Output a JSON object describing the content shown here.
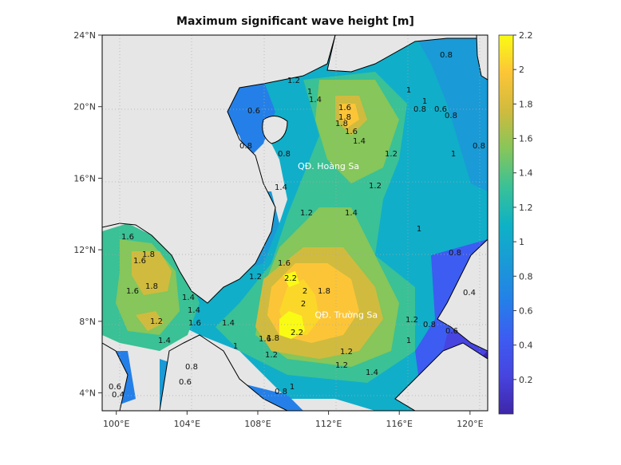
{
  "title": "Maximum significant wave height [m]",
  "map": {
    "lon_ticks": [
      "100°E",
      "104°E",
      "108°E",
      "112°E",
      "116°E",
      "120°E"
    ],
    "lat_ticks": [
      "24°N",
      "20°N",
      "16°N",
      "12°N",
      "8°N",
      "4°N"
    ],
    "lon_range": [
      99.2,
      121.0
    ],
    "lat_range": [
      3.0,
      24.0
    ],
    "grid": true,
    "places": [
      {
        "name": "QĐ. Hoàng Sa",
        "lon": 112.0,
        "lat": 16.5
      },
      {
        "name": "QĐ. Trường Sa",
        "lon": 113.0,
        "lat": 8.2
      }
    ],
    "contour_labels": [
      "0.6",
      "0.8",
      "0.8",
      "1",
      "1.2",
      "1.4",
      "1.6",
      "1.8",
      "1.8",
      "1.6",
      "1.4",
      "1.2",
      "1",
      "0.8",
      "0.6",
      "0.8",
      "1.4",
      "1.2",
      "1",
      "1.2",
      "1.4",
      "1",
      "0.8",
      "1.6",
      "1.8",
      "1.6",
      "1.8",
      "1.6",
      "1.4",
      "1.4",
      "1.6",
      "1.4",
      "1.2",
      "1.4",
      "1.2",
      "1.6",
      "2",
      "2.2",
      "1.8",
      "2",
      "2.2",
      "1.8",
      "1.6",
      "1.2",
      "1",
      "0.8",
      "0.6",
      "0.4",
      "0.6",
      "0.8",
      "1",
      "1.2",
      "1.4",
      "1.2",
      "1.2",
      "1",
      "0.8",
      "0.6",
      "0.4",
      "0.8",
      "1",
      "0.8"
    ]
  },
  "colorbar": {
    "ticks": [
      "2.2",
      "2",
      "1.8",
      "1.6",
      "1.4",
      "1.2",
      "1",
      "0.8",
      "0.6",
      "0.4",
      "0.2"
    ],
    "range": [
      0,
      2.2
    ],
    "colormap": [
      "#3e26a8",
      "#4744e0",
      "#2f6ff0",
      "#1f92dc",
      "#10aec9",
      "#25bfa0",
      "#63c66b",
      "#b2c142",
      "#f0b73c",
      "#fbd72a",
      "#f9fb15"
    ]
  }
}
